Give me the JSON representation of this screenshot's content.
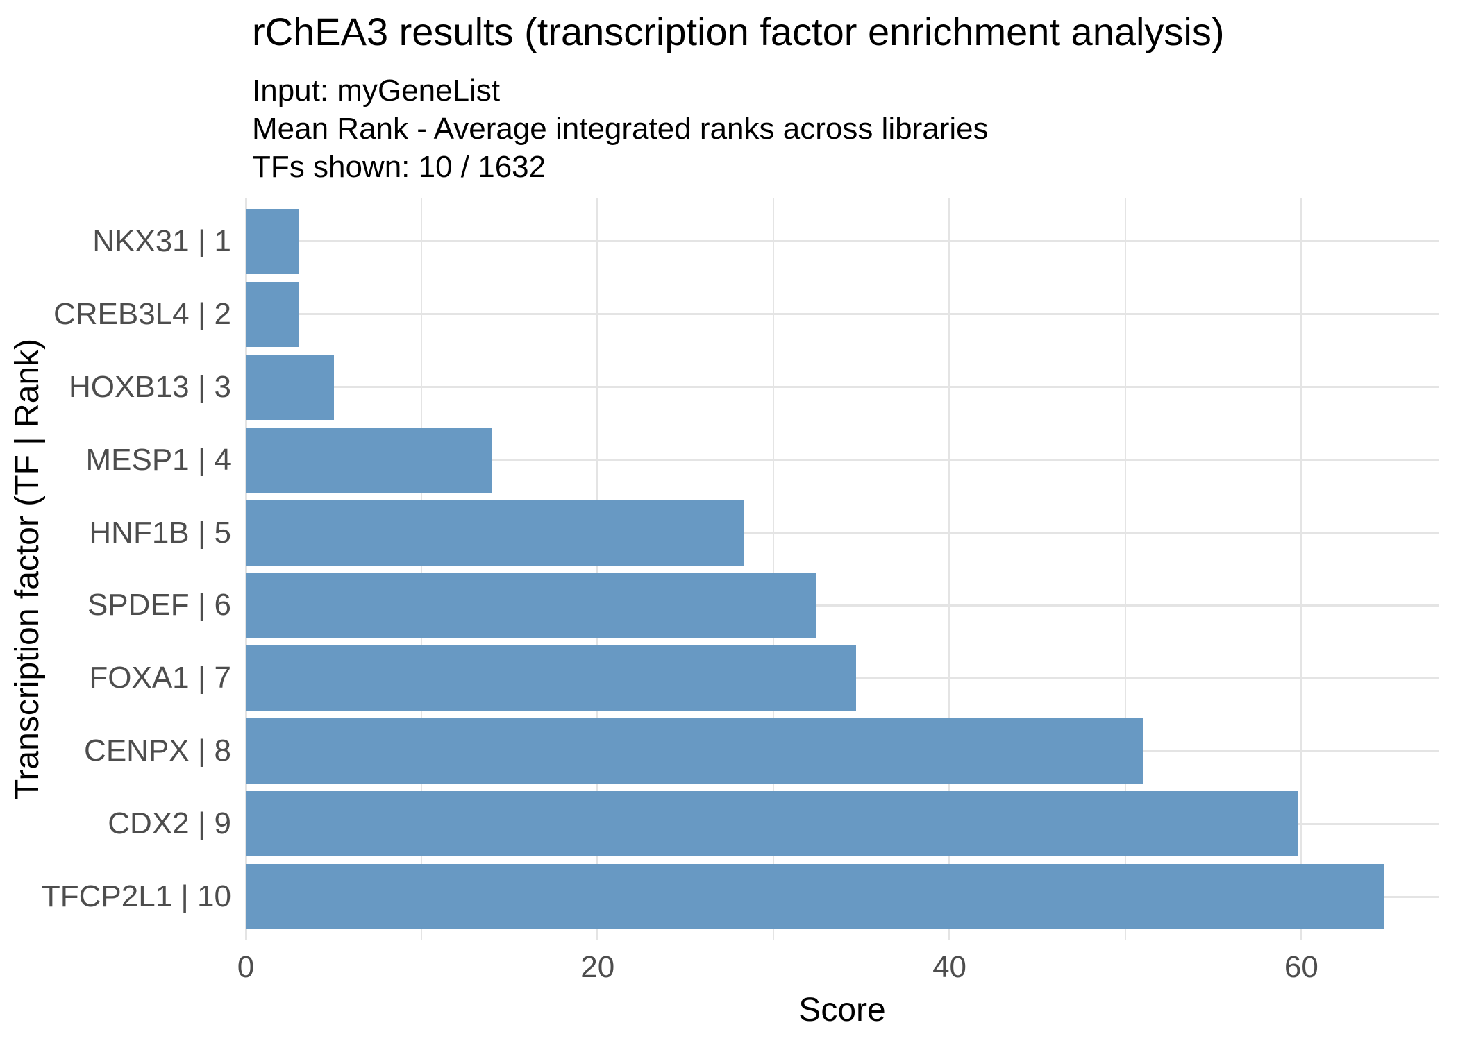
{
  "chart_data": {
    "type": "bar",
    "orientation": "horizontal",
    "title": "rChEA3 results (transcription factor enrichment analysis)",
    "subtitle_lines": [
      "Input: myGeneList",
      "Mean Rank - Average integrated ranks across libraries",
      "TFs shown: 10 / 1632"
    ],
    "categories": [
      "NKX31 | 1",
      "CREB3L4 | 2",
      "HOXB13 | 3",
      "MESP1 | 4",
      "HNF1B | 5",
      "SPDEF | 6",
      "FOXA1 | 7",
      "CENPX | 8",
      "CDX2 | 9",
      "TFCP2L1 | 10"
    ],
    "values": [
      3.0,
      3.0,
      5.0,
      14.0,
      28.3,
      32.4,
      34.7,
      51.0,
      59.8,
      64.7
    ],
    "xlabel": "Score",
    "ylabel": "Transcription factor (TF | Rank)",
    "xlim": [
      0,
      67.8
    ],
    "x_major_ticks": [
      0,
      20,
      40,
      60
    ],
    "x_minor_ticks": [
      10,
      30,
      50
    ],
    "grid": true,
    "legend": "none",
    "bar_color": "#6899c3",
    "gridline_color": "#e4e4e4",
    "tick_text_color": "#4d4d4d",
    "title_color": "#000000"
  }
}
